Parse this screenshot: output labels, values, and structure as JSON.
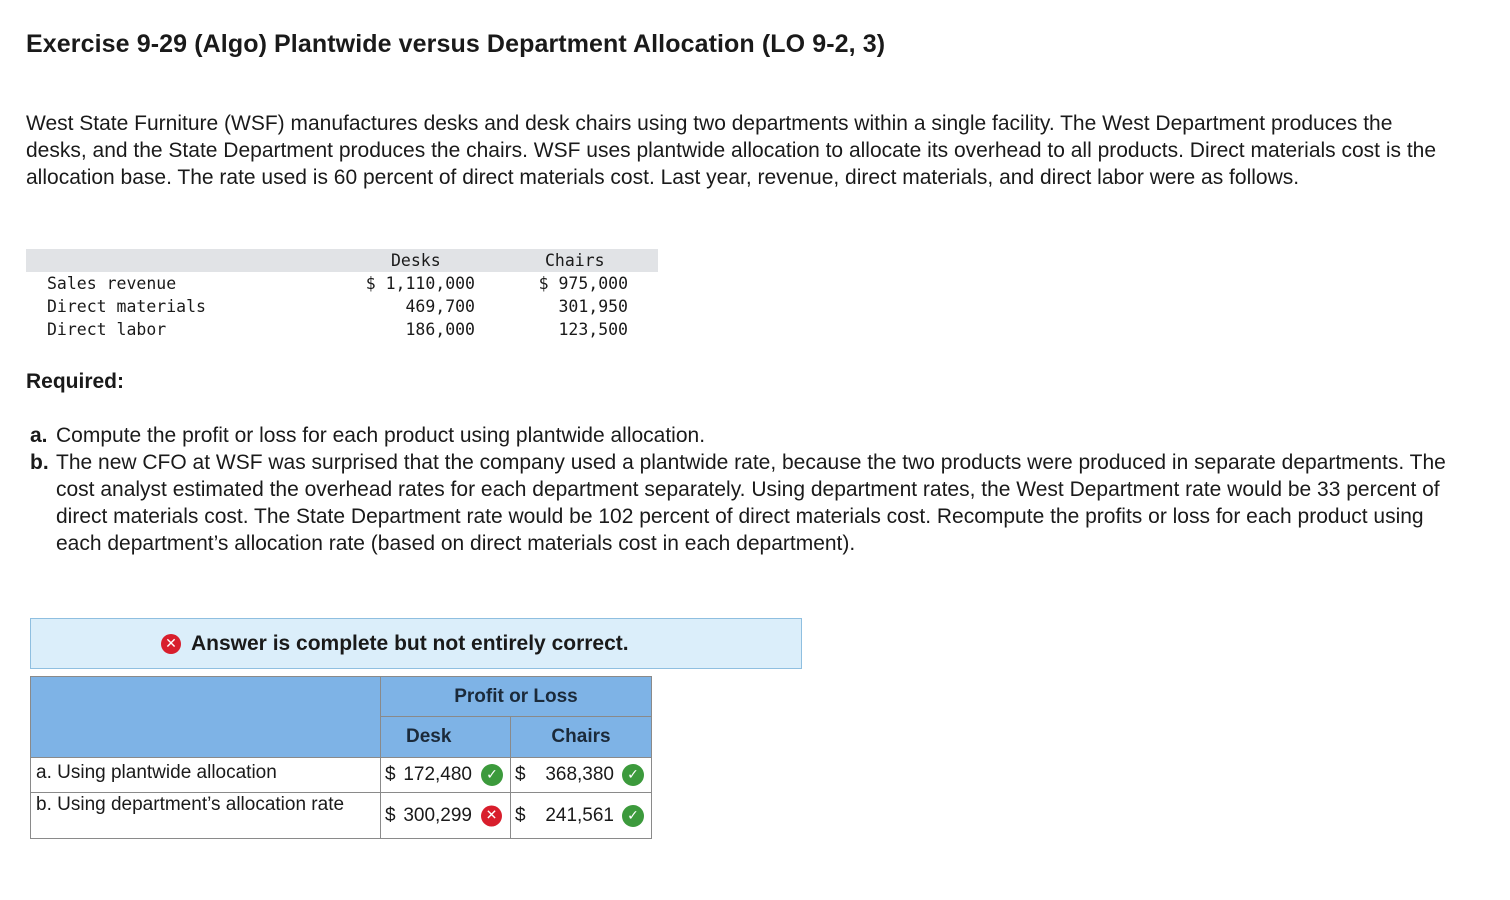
{
  "title": "Exercise 9-29 (Algo) Plantwide versus Department Allocation (LO 9-2, 3)",
  "intro": "West State Furniture (WSF) manufactures desks and desk chairs using two departments within a single facility. The West Department produces the desks, and the State Department produces the chairs. WSF uses plantwide allocation to allocate its overhead to all products. Direct materials cost is the allocation base. The rate used is 60 percent of direct materials cost. Last year, revenue, direct materials, and direct labor were as follows.",
  "data_table": {
    "headers": [
      "Desks",
      "Chairs"
    ],
    "rows": [
      {
        "label": "Sales revenue",
        "desks": "$ 1,110,000",
        "chairs": "$ 975,000"
      },
      {
        "label": "Direct materials",
        "desks": "469,700",
        "chairs": "301,950"
      },
      {
        "label": "Direct labor",
        "desks": "186,000",
        "chairs": "123,500"
      }
    ]
  },
  "required": {
    "heading": "Required:",
    "items": [
      {
        "label": "a.",
        "text": "Compute the profit or loss for each product using plantwide allocation."
      },
      {
        "label": "b.",
        "text": "The new CFO at WSF was surprised that the company used a plantwide rate, because the two products were produced in separate departments. The cost analyst estimated the overhead rates for each department separately. Using department rates, the West Department rate would be 33 percent of direct materials cost. The State Department rate would be 102 percent of direct materials cost. Recompute the profits or loss for each product using each department’s allocation rate (based on direct materials cost in each department)."
      }
    ]
  },
  "banner": {
    "icon": "x-circle-icon",
    "text": "Answer is complete but not entirely correct."
  },
  "answer_table": {
    "group_header": "Profit or Loss",
    "col_desk": "Desk",
    "col_chairs": "Chairs",
    "rows": [
      {
        "label": "a. Using plantwide allocation",
        "desk_cur": "$",
        "desk": "172,480",
        "desk_status": "correct",
        "chairs_cur": "$",
        "chairs": "368,380",
        "chairs_status": "correct"
      },
      {
        "label": "b. Using department’s allocation rate",
        "desk_cur": "$",
        "desk": "300,299",
        "desk_status": "incorrect",
        "chairs_cur": "$",
        "chairs": "241,561",
        "chairs_status": "correct"
      }
    ]
  },
  "colors": {
    "header_blue": "#7eb3e6",
    "banner_bg": "#dbeefa",
    "correct_green": "#3c9a3c",
    "incorrect_red": "#d81e2c"
  }
}
